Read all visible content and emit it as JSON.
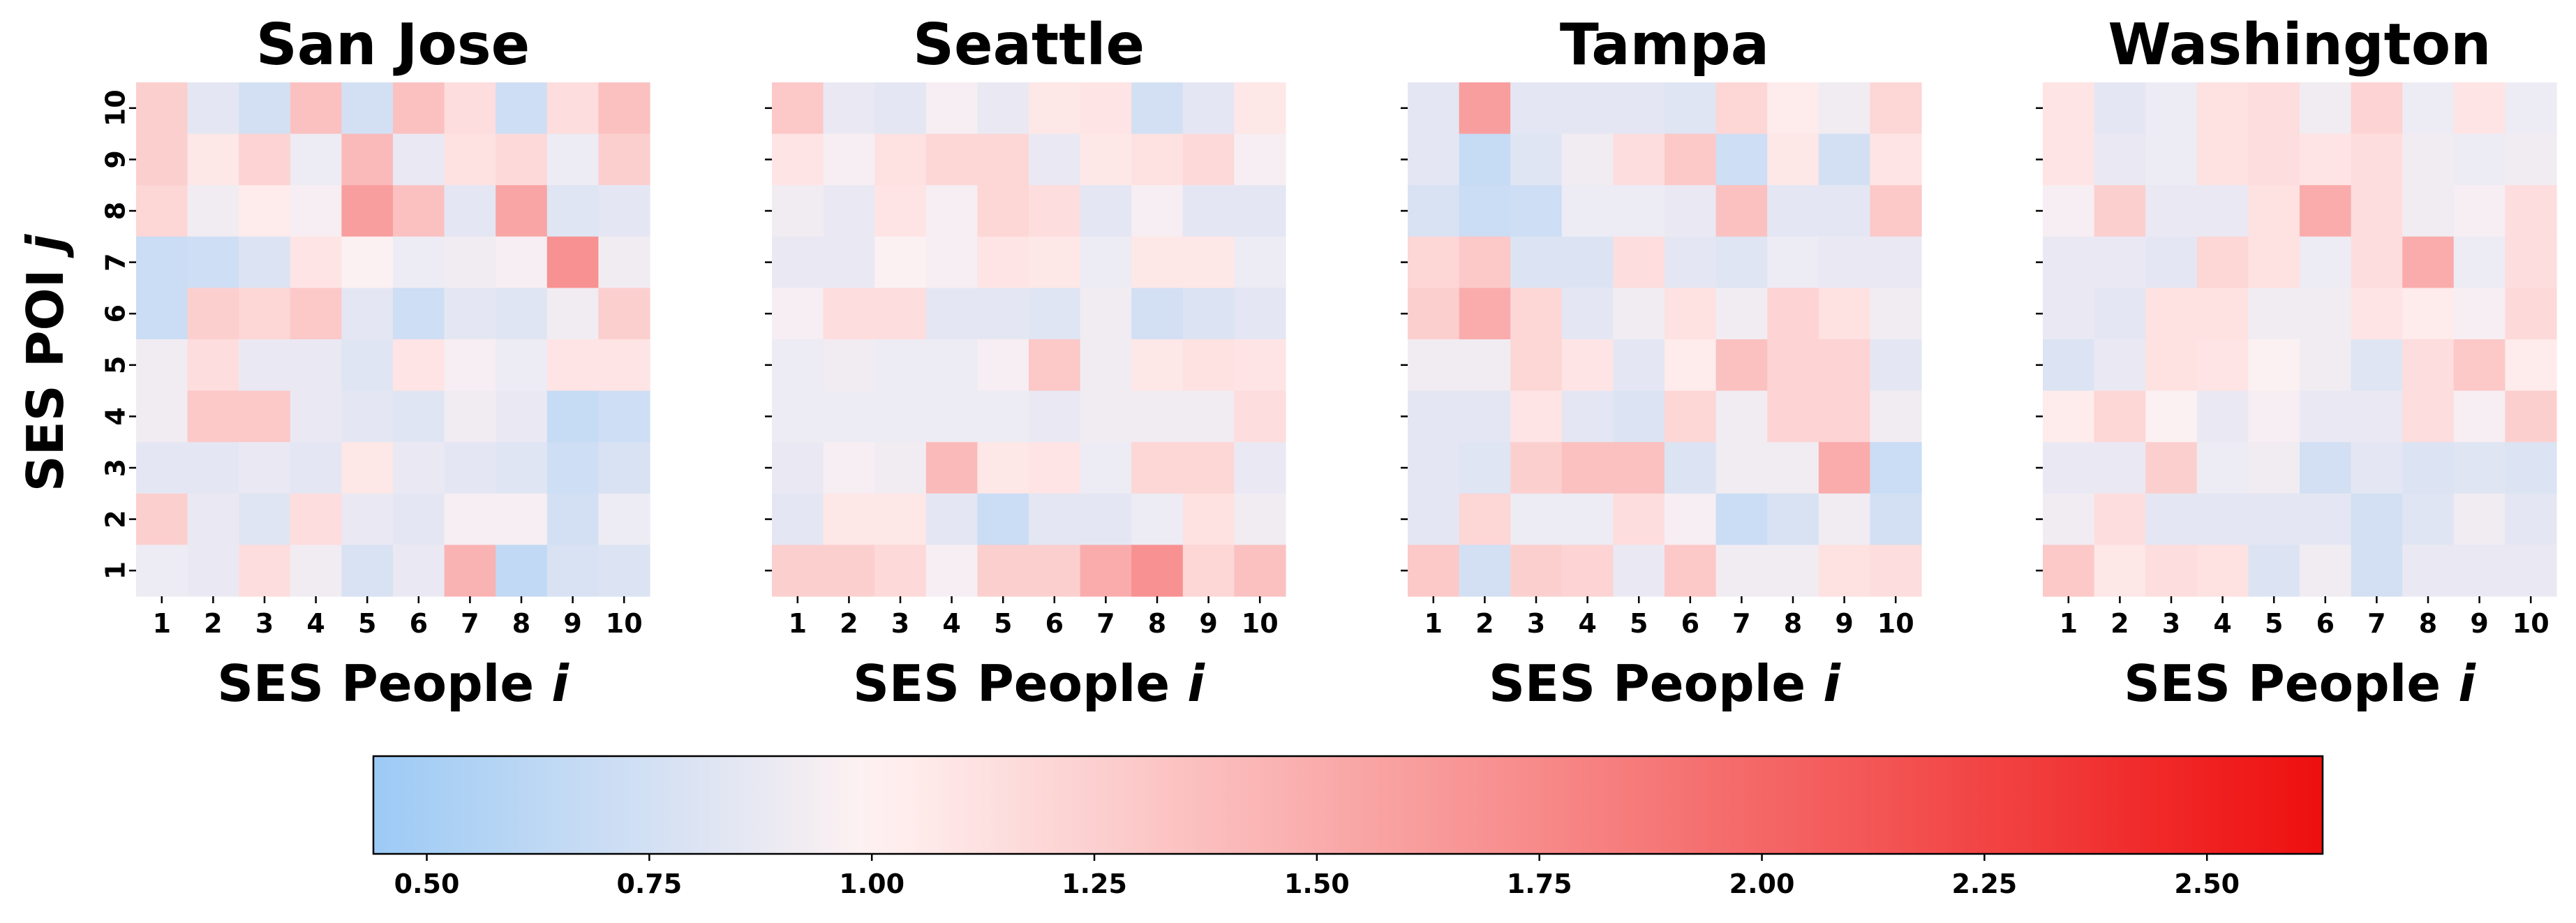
{
  "chart_data": {
    "type": "heatmap",
    "ylabel": "SES POI j",
    "colorbar": {
      "ticks": [
        "0.50",
        "0.75",
        "1.00",
        "1.25",
        "1.50",
        "1.75",
        "2.00",
        "2.25",
        "2.50"
      ],
      "tick_values": [
        0.5,
        0.75,
        1.0,
        1.25,
        1.5,
        1.75,
        2.0,
        2.25,
        2.5
      ],
      "range": [
        0.44,
        2.63
      ],
      "center": 1.0,
      "colors": {
        "low": "#9ccaf5",
        "center": "#fff2f2",
        "high": "#ee0f0f"
      },
      "placement": "bottom"
    },
    "x_ticks": [
      "1",
      "2",
      "3",
      "4",
      "5",
      "6",
      "7",
      "8",
      "9",
      "10"
    ],
    "y_ticks": [
      "1",
      "2",
      "3",
      "4",
      "5",
      "6",
      "7",
      "8",
      "9",
      "10"
    ],
    "panels": [
      {
        "title": "San Jose",
        "xlabel": "SES People i",
        "rows_note": "rows listed top (j=10) to bottom (j=1); columns i=1..10",
        "values": [
          [
            1.25,
            0.85,
            0.75,
            1.35,
            0.75,
            1.35,
            1.15,
            0.72,
            1.15,
            1.35
          ],
          [
            1.25,
            1.08,
            1.22,
            0.9,
            1.4,
            0.88,
            1.12,
            1.18,
            0.9,
            1.25
          ],
          [
            1.2,
            0.92,
            1.05,
            0.95,
            1.6,
            1.35,
            0.85,
            1.55,
            0.82,
            0.85
          ],
          [
            0.7,
            0.72,
            0.8,
            1.1,
            0.98,
            0.9,
            0.92,
            0.95,
            1.7,
            0.92
          ],
          [
            0.7,
            1.25,
            1.2,
            1.3,
            0.85,
            0.72,
            0.85,
            0.82,
            0.92,
            1.25
          ],
          [
            0.92,
            1.15,
            0.88,
            0.88,
            0.82,
            1.1,
            0.95,
            0.9,
            1.1,
            1.1
          ],
          [
            0.92,
            1.3,
            1.3,
            0.88,
            0.85,
            0.82,
            0.92,
            0.88,
            0.68,
            0.72
          ],
          [
            0.85,
            0.85,
            0.88,
            0.85,
            1.08,
            0.88,
            0.85,
            0.82,
            0.72,
            0.78
          ],
          [
            1.25,
            0.88,
            0.82,
            1.15,
            0.88,
            0.85,
            0.95,
            0.95,
            0.75,
            0.9
          ],
          [
            0.9,
            0.88,
            1.15,
            0.92,
            0.78,
            0.88,
            1.45,
            0.65,
            0.78,
            0.8
          ]
        ]
      },
      {
        "title": "Seattle",
        "xlabel": "SES People i",
        "values": [
          [
            1.3,
            0.88,
            0.85,
            0.95,
            0.88,
            1.08,
            1.1,
            0.75,
            0.85,
            1.08
          ],
          [
            1.1,
            0.95,
            1.12,
            1.2,
            1.2,
            0.88,
            1.08,
            1.12,
            1.18,
            0.95
          ],
          [
            0.92,
            0.88,
            1.1,
            0.95,
            1.2,
            1.15,
            0.85,
            0.95,
            0.85,
            0.85
          ],
          [
            0.88,
            0.88,
            0.98,
            0.95,
            1.1,
            1.08,
            0.9,
            1.08,
            1.08,
            0.9
          ],
          [
            0.95,
            1.15,
            1.15,
            0.85,
            0.85,
            0.82,
            0.92,
            0.75,
            0.8,
            0.85
          ],
          [
            0.9,
            0.92,
            0.9,
            0.9,
            0.95,
            1.3,
            0.92,
            1.08,
            1.12,
            1.1
          ],
          [
            0.9,
            0.9,
            0.9,
            0.9,
            0.9,
            0.88,
            0.92,
            0.92,
            0.92,
            1.15
          ],
          [
            0.88,
            0.95,
            0.92,
            1.4,
            1.08,
            1.1,
            0.9,
            1.2,
            1.2,
            0.88
          ],
          [
            0.85,
            1.08,
            1.08,
            0.85,
            0.7,
            0.85,
            0.85,
            0.9,
            1.12,
            0.92
          ],
          [
            1.25,
            1.25,
            1.18,
            0.95,
            1.25,
            1.25,
            1.5,
            1.7,
            1.2,
            1.35
          ]
        ]
      },
      {
        "title": "Tampa",
        "xlabel": "SES People i",
        "values": [
          [
            0.85,
            1.6,
            0.85,
            0.85,
            0.85,
            0.82,
            1.2,
            1.05,
            0.92,
            1.2
          ],
          [
            0.85,
            0.68,
            0.82,
            0.92,
            1.15,
            1.3,
            0.72,
            1.08,
            0.75,
            1.1
          ],
          [
            0.78,
            0.7,
            0.72,
            0.9,
            0.9,
            0.88,
            1.35,
            0.85,
            0.85,
            1.3
          ],
          [
            1.2,
            1.3,
            0.8,
            0.8,
            1.15,
            0.85,
            0.82,
            0.9,
            0.88,
            0.88
          ],
          [
            1.25,
            1.5,
            1.2,
            0.85,
            0.92,
            1.12,
            0.92,
            1.22,
            1.12,
            0.92
          ],
          [
            0.92,
            0.92,
            1.2,
            1.1,
            0.85,
            1.05,
            1.35,
            1.22,
            1.22,
            0.85
          ],
          [
            0.85,
            0.85,
            1.1,
            0.85,
            0.8,
            1.2,
            0.92,
            1.22,
            1.22,
            0.92
          ],
          [
            0.85,
            0.82,
            1.25,
            1.35,
            1.35,
            0.8,
            0.92,
            0.92,
            1.5,
            0.7
          ],
          [
            0.85,
            1.2,
            0.9,
            0.9,
            1.15,
            0.95,
            0.7,
            0.78,
            0.92,
            0.75
          ],
          [
            1.3,
            0.75,
            1.25,
            1.22,
            0.88,
            1.3,
            0.92,
            0.92,
            1.12,
            1.15
          ]
        ]
      },
      {
        "title": "Washington",
        "xlabel": "SES People i",
        "values": [
          [
            1.1,
            0.85,
            0.9,
            1.12,
            1.15,
            0.92,
            1.22,
            0.9,
            1.1,
            0.9
          ],
          [
            1.1,
            0.88,
            0.9,
            1.12,
            1.15,
            1.1,
            1.15,
            0.92,
            0.9,
            0.92
          ],
          [
            0.95,
            1.25,
            0.88,
            0.88,
            1.12,
            1.5,
            1.15,
            0.92,
            0.95,
            1.15
          ],
          [
            0.88,
            0.88,
            0.85,
            1.2,
            1.12,
            0.9,
            1.15,
            1.5,
            0.9,
            1.15
          ],
          [
            0.88,
            0.85,
            1.12,
            1.12,
            0.92,
            0.92,
            1.1,
            1.05,
            0.95,
            1.18
          ],
          [
            0.8,
            0.88,
            1.12,
            1.1,
            0.98,
            0.92,
            0.82,
            1.15,
            1.3,
            1.05
          ],
          [
            1.05,
            1.2,
            0.98,
            0.88,
            0.95,
            0.88,
            0.88,
            1.15,
            0.95,
            1.25
          ],
          [
            0.88,
            0.88,
            1.25,
            0.9,
            0.92,
            0.75,
            0.85,
            0.8,
            0.82,
            0.8
          ],
          [
            0.92,
            1.15,
            0.85,
            0.85,
            0.85,
            0.85,
            0.75,
            0.82,
            0.92,
            0.85
          ],
          [
            1.3,
            1.08,
            1.15,
            1.12,
            0.8,
            0.92,
            0.75,
            0.88,
            0.88,
            0.88
          ]
        ]
      }
    ]
  }
}
